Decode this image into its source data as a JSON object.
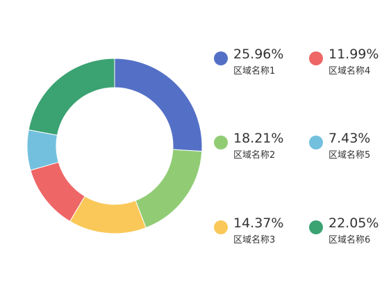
{
  "chart_data": {
    "type": "pie",
    "variant": "donut",
    "start_angle": "top, clockwise",
    "legend_position": "right",
    "categories": [
      "区域名称1",
      "区域名称2",
      "区域名称3",
      "区域名称4",
      "区域名称5",
      "区域名称6"
    ],
    "values": [
      25.96,
      18.21,
      14.37,
      11.99,
      7.43,
      22.05
    ],
    "value_labels": [
      "25.96%",
      "18.21%",
      "14.37%",
      "11.99%",
      "7.43%",
      "22.05%"
    ],
    "colors": [
      "#5470c6",
      "#91cc75",
      "#fac858",
      "#ee6666",
      "#73c0de",
      "#3ba272"
    ],
    "unit": "%"
  }
}
